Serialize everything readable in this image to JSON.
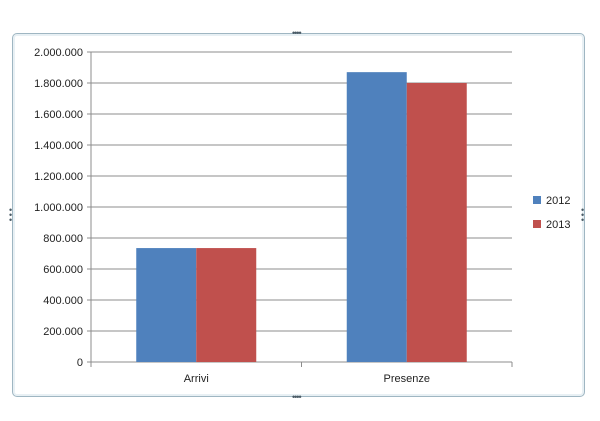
{
  "chart_data": {
    "type": "bar",
    "categories": [
      "Arrivi",
      "Presenze"
    ],
    "series": [
      {
        "name": "2012",
        "color": "#4f81bd",
        "values": [
          735000,
          1870000
        ]
      },
      {
        "name": "2013",
        "color": "#c0504d",
        "values": [
          735000,
          1800000
        ]
      }
    ],
    "ylim": [
      0,
      2000000
    ],
    "yticks": [
      0,
      200000,
      400000,
      600000,
      800000,
      1000000,
      1200000,
      1400000,
      1600000,
      1800000,
      2000000
    ],
    "ytick_labels": [
      "0",
      "200.000",
      "400.000",
      "600.000",
      "800.000",
      "1.000.000",
      "1.200.000",
      "1.400.000",
      "1.600.000",
      "1.800.000",
      "2.000.000"
    ],
    "grid": true,
    "legend": "right"
  }
}
